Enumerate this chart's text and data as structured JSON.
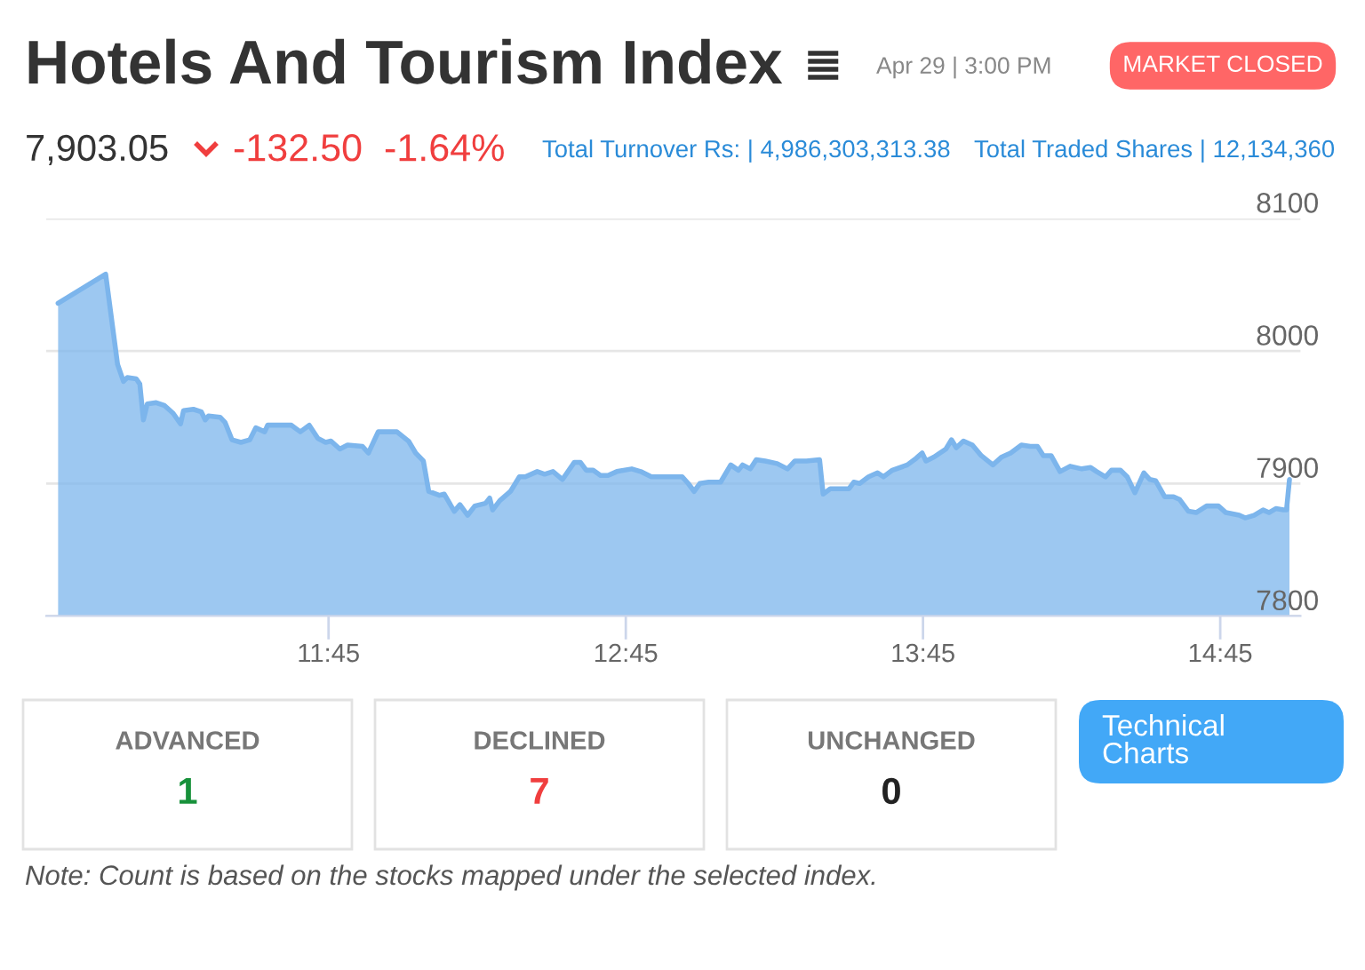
{
  "chart_data": [
    {
      "type": "area",
      "title": "Hotels And Tourism Index",
      "subtitle": "Apr 29 | 3:00 PM",
      "annotations": [
        "MARKET CLOSED",
        "7,903.05",
        "-132.50",
        "-1.64%",
        "Total Turnover Rs: | 4,986,303,313.38",
        "Total Traded Shares | 12,134,360"
      ],
      "color": "#7cb5ec",
      "x": [
        10.84,
        11.0,
        11.04,
        11.06,
        11.073,
        11.103,
        11.115,
        11.127,
        11.14,
        11.17,
        11.197,
        11.227,
        11.252,
        11.262,
        11.295,
        11.322,
        11.335,
        11.346,
        11.385,
        11.402,
        11.425,
        11.455,
        11.485,
        11.505,
        11.535,
        11.545,
        11.595,
        11.625,
        11.655,
        11.685,
        11.714,
        11.74,
        11.758,
        11.788,
        11.814,
        11.864,
        11.884,
        11.917,
        11.98,
        12.019,
        12.043,
        12.069,
        12.087,
        12.123,
        12.139,
        12.173,
        12.192,
        12.218,
        12.242,
        12.278,
        12.292,
        12.302,
        12.326,
        12.362,
        12.392,
        12.412,
        12.452,
        12.477,
        12.505,
        12.537,
        12.577,
        12.597,
        12.617,
        12.64,
        12.665,
        12.69,
        12.72,
        12.77,
        12.8,
        12.836,
        12.87,
        12.9,
        12.94,
        12.96,
        12.98,
        12.999,
        13.029,
        13.069,
        13.103,
        13.129,
        13.143,
        13.169,
        13.189,
        13.219,
        13.259,
        13.294,
        13.319,
        13.358,
        13.402,
        13.414,
        13.438,
        13.477,
        13.501,
        13.517,
        13.537,
        13.567,
        13.597,
        13.617,
        13.647,
        13.697,
        13.727,
        13.747,
        13.76,
        13.787,
        13.827,
        13.846,
        13.862,
        13.886,
        13.916,
        13.946,
        13.985,
        14.015,
        14.045,
        14.081,
        14.111,
        14.135,
        14.155,
        14.181,
        14.211,
        14.245,
        14.284,
        14.314,
        14.334,
        14.364,
        14.384,
        14.414,
        14.437,
        14.463,
        14.493,
        14.513,
        14.533,
        14.563,
        14.593,
        14.613,
        14.643,
        14.669,
        14.704,
        14.744,
        14.769,
        14.814,
        14.834,
        14.864,
        14.894,
        14.914,
        14.937,
        14.963,
        14.973,
        14.983
      ],
      "values": [
        8036,
        8058,
        7990,
        7977,
        7980,
        7979,
        7975,
        7948,
        7960,
        7961,
        7959,
        7953,
        7945,
        7955,
        7956,
        7954,
        7948,
        7951,
        7950,
        7946,
        7933,
        7931,
        7933,
        7942,
        7939,
        7944,
        7944,
        7944,
        7939,
        7944,
        7934,
        7931,
        7932,
        7926,
        7929,
        7928,
        7923,
        7939,
        7939,
        7932,
        7923,
        7917,
        7894,
        7891,
        7892,
        7879,
        7884,
        7876,
        7883,
        7885,
        7889,
        7880,
        7887,
        7894,
        7905,
        7905,
        7909,
        7907,
        7909,
        7903,
        7916,
        7916,
        7910,
        7910,
        7906,
        7906,
        7909,
        7911,
        7909,
        7905,
        7905,
        7905,
        7905,
        7900,
        7894,
        7900,
        7901,
        7901,
        7914,
        7910,
        7914,
        7911,
        7918,
        7917,
        7915,
        7911,
        7917,
        7917,
        7918,
        7892,
        7896,
        7896,
        7896,
        7901,
        7900,
        7905,
        7908,
        7905,
        7910,
        7914,
        7919,
        7923,
        7917,
        7920,
        7926,
        7933,
        7927,
        7932,
        7929,
        7921,
        7914,
        7920,
        7923,
        7929,
        7928,
        7928,
        7921,
        7921,
        7909,
        7913,
        7911,
        7912,
        7909,
        7905,
        7910,
        7910,
        7905,
        7893,
        7908,
        7903,
        7902,
        7890,
        7890,
        7888,
        7879,
        7878,
        7883,
        7883,
        7878,
        7876,
        7874,
        7876,
        7880,
        7878,
        7881,
        7880,
        7880,
        7903
      ],
      "xlim": [
        10.8,
        15.02
      ],
      "xticks": [
        {
          "value": 11.75,
          "label": "11:45"
        },
        {
          "value": 12.75,
          "label": "12:45"
        },
        {
          "value": 13.75,
          "label": "13:45"
        },
        {
          "value": 14.75,
          "label": "14:45"
        }
      ],
      "ylim": [
        7800,
        8100
      ],
      "yticks": [
        7800,
        7900,
        8000,
        8100
      ],
      "grid": "y"
    },
    {
      "type": "other",
      "categories": [
        "ADVANCED",
        "DECLINED",
        "UNCHANGED"
      ],
      "values": [
        1,
        7,
        0
      ],
      "data_labels": true,
      "annotations": [
        "Technical Charts",
        "Note: Count is based on the stocks mapped under the selected index."
      ]
    }
  ]
}
